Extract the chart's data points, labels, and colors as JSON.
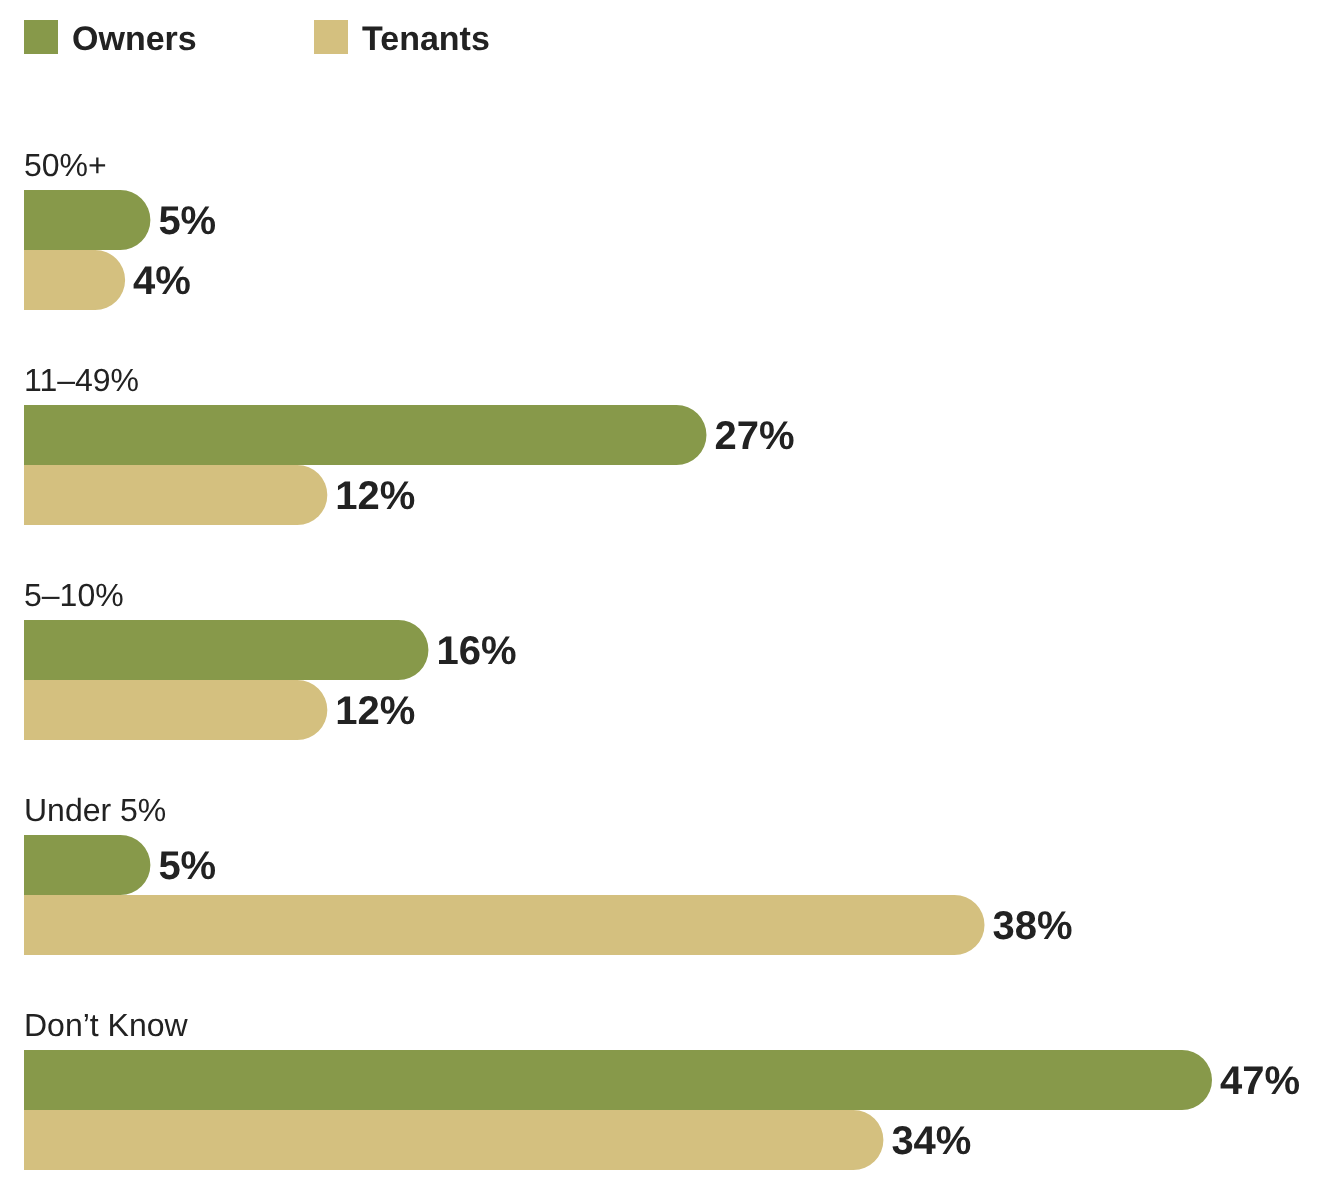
{
  "chart_data": {
    "type": "bar",
    "orientation": "horizontal",
    "categories": [
      "50%+",
      "11–49%",
      "5–10%",
      "Under 5%",
      "Don’t Know"
    ],
    "series": [
      {
        "name": "Owners",
        "color": "#87994a",
        "values": [
          5,
          27,
          16,
          5,
          47
        ],
        "value_labels": [
          "5%",
          "27%",
          "16%",
          "5%",
          "47%"
        ]
      },
      {
        "name": "Tenants",
        "color": "#d4c07f",
        "values": [
          4,
          12,
          12,
          38,
          34
        ],
        "value_labels": [
          "4%",
          "12%",
          "12%",
          "38%",
          "34%"
        ]
      }
    ],
    "legend": "top left"
  }
}
